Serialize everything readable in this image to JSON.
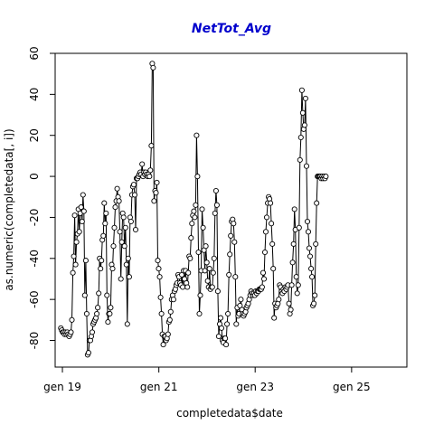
{
  "chart_data": {
    "type": "line",
    "title": "NetTot_Avg",
    "xlabel": "completedata$date",
    "ylabel": "as.numeric(completedata[, i])",
    "x_ticks": [
      "gen 19",
      "gen 21",
      "gen 23",
      "gen 25"
    ],
    "y_ticks": [
      "-80",
      "-60",
      "-40",
      "-20",
      "0",
      "20",
      "40",
      "60"
    ],
    "xlim": [
      "2018-11-07",
      "2026-02-24"
    ],
    "ylim": [
      -93,
      60
    ],
    "grid": false,
    "series": [
      {
        "style": "line-with-open-circles",
        "color": "#000000",
        "points": [
          [
            "2018-12-20",
            -74
          ],
          [
            "2018-12-27",
            -75
          ],
          [
            "2019-01-03",
            -76
          ],
          [
            "2019-01-10",
            -76
          ],
          [
            "2019-01-17",
            -77
          ],
          [
            "2019-01-24",
            -76
          ],
          [
            "2019-01-31",
            -77
          ],
          [
            "2019-02-07",
            -76
          ],
          [
            "2019-02-14",
            -77
          ],
          [
            "2019-02-21",
            -78
          ],
          [
            "2019-02-28",
            -77
          ],
          [
            "2019-03-07",
            -76
          ],
          [
            "2019-03-14",
            -70
          ],
          [
            "2019-03-21",
            -47
          ],
          [
            "2019-03-28",
            -39
          ],
          [
            "2019-04-04",
            -19
          ],
          [
            "2019-04-11",
            -43
          ],
          [
            "2019-04-18",
            -32
          ],
          [
            "2019-04-25",
            -28
          ],
          [
            "2019-05-02",
            -16
          ],
          [
            "2019-05-09",
            -27
          ],
          [
            "2019-05-16",
            -18
          ],
          [
            "2019-05-23",
            -15
          ],
          [
            "2019-05-30",
            -22
          ],
          [
            "2019-06-06",
            -9
          ],
          [
            "2019-06-13",
            -17
          ],
          [
            "2019-06-20",
            -58
          ],
          [
            "2019-06-27",
            -41
          ],
          [
            "2019-07-04",
            -67
          ],
          [
            "2019-07-11",
            -87
          ],
          [
            "2019-07-18",
            -86
          ],
          [
            "2019-07-25",
            -80
          ],
          [
            "2019-08-01",
            -80
          ],
          [
            "2019-08-08",
            -78
          ],
          [
            "2019-08-15",
            -76
          ],
          [
            "2019-08-22",
            -72
          ],
          [
            "2019-08-29",
            -71
          ],
          [
            "2019-09-05",
            -70
          ],
          [
            "2019-09-12",
            -69
          ],
          [
            "2019-09-19",
            -67
          ],
          [
            "2019-09-26",
            -64
          ],
          [
            "2019-10-03",
            -57
          ],
          [
            "2019-10-10",
            -40
          ],
          [
            "2019-10-17",
            -45
          ],
          [
            "2019-10-24",
            -41
          ],
          [
            "2019-10-31",
            -31
          ],
          [
            "2019-11-07",
            -29
          ],
          [
            "2019-11-14",
            -13
          ],
          [
            "2019-11-21",
            -23
          ],
          [
            "2019-11-28",
            -18
          ],
          [
            "2019-12-05",
            -58
          ],
          [
            "2019-12-12",
            -71
          ],
          [
            "2019-12-19",
            -67
          ],
          [
            "2019-12-26",
            -67
          ],
          [
            "2020-01-02",
            -64
          ],
          [
            "2020-01-09",
            -43
          ],
          [
            "2020-01-16",
            -45
          ],
          [
            "2020-01-23",
            -34
          ],
          [
            "2020-01-30",
            -25
          ],
          [
            "2020-02-06",
            -15
          ],
          [
            "2020-02-13",
            -12
          ],
          [
            "2020-02-20",
            -6
          ],
          [
            "2020-02-27",
            -10
          ],
          [
            "2020-03-05",
            -12
          ],
          [
            "2020-03-12",
            -27
          ],
          [
            "2020-03-19",
            -50
          ],
          [
            "2020-03-26",
            -32
          ],
          [
            "2020-04-02",
            -18
          ],
          [
            "2020-04-09",
            -20
          ],
          [
            "2020-04-16",
            -34
          ],
          [
            "2020-04-23",
            -25
          ],
          [
            "2020-04-30",
            -43
          ],
          [
            "2020-05-07",
            -72
          ],
          [
            "2020-05-14",
            -40
          ],
          [
            "2020-05-21",
            -49
          ],
          [
            "2020-05-28",
            -20
          ],
          [
            "2020-06-04",
            -22
          ],
          [
            "2020-06-11",
            -9
          ],
          [
            "2020-06-18",
            -5
          ],
          [
            "2020-06-25",
            -4
          ],
          [
            "2020-07-02",
            -9
          ],
          [
            "2020-07-09",
            -26
          ],
          [
            "2020-07-16",
            -1
          ],
          [
            "2020-07-23",
            -1
          ],
          [
            "2020-07-30",
            0
          ],
          [
            "2020-08-06",
            1
          ],
          [
            "2020-08-13",
            2
          ],
          [
            "2020-08-20",
            1
          ],
          [
            "2020-08-27",
            6
          ],
          [
            "2020-09-03",
            0
          ],
          [
            "2020-09-10",
            2
          ],
          [
            "2020-09-17",
            1
          ],
          [
            "2020-09-24",
            2
          ],
          [
            "2020-10-01",
            1
          ],
          [
            "2020-10-08",
            0
          ],
          [
            "2020-10-15",
            1
          ],
          [
            "2020-10-22",
            0
          ],
          [
            "2020-10-29",
            3
          ],
          [
            "2020-11-05",
            15
          ],
          [
            "2020-11-12",
            55
          ],
          [
            "2020-11-19",
            53
          ],
          [
            "2020-11-26",
            -12
          ],
          [
            "2020-12-03",
            -7
          ],
          [
            "2020-12-10",
            -8
          ],
          [
            "2020-12-17",
            -3
          ],
          [
            "2020-12-24",
            -41
          ],
          [
            "2020-12-31",
            -45
          ],
          [
            "2021-01-07",
            -49
          ],
          [
            "2021-01-14",
            -59
          ],
          [
            "2021-01-21",
            -67
          ],
          [
            "2021-01-28",
            -77
          ],
          [
            "2021-02-04",
            -82
          ],
          [
            "2021-02-11",
            -78
          ],
          [
            "2021-02-18",
            -78
          ],
          [
            "2021-02-25",
            -80
          ],
          [
            "2021-03-04",
            -79
          ],
          [
            "2021-03-11",
            -77
          ],
          [
            "2021-03-18",
            -71
          ],
          [
            "2021-03-25",
            -70
          ],
          [
            "2021-04-01",
            -66
          ],
          [
            "2021-04-08",
            -60
          ],
          [
            "2021-04-15",
            -58
          ],
          [
            "2021-04-22",
            -60
          ],
          [
            "2021-04-29",
            -56
          ],
          [
            "2021-05-06",
            -55
          ],
          [
            "2021-05-13",
            -53
          ],
          [
            "2021-05-20",
            -52
          ],
          [
            "2021-05-27",
            -48
          ],
          [
            "2021-06-03",
            -49
          ],
          [
            "2021-06-10",
            -52
          ],
          [
            "2021-06-17",
            -53
          ],
          [
            "2021-06-24",
            -48
          ],
          [
            "2021-07-01",
            -54
          ],
          [
            "2021-07-08",
            -46
          ],
          [
            "2021-07-15",
            -50
          ],
          [
            "2021-07-22",
            -46
          ],
          [
            "2021-07-29",
            -52
          ],
          [
            "2021-08-05",
            -54
          ],
          [
            "2021-08-12",
            -47
          ],
          [
            "2021-08-19",
            -39
          ],
          [
            "2021-08-26",
            -40
          ],
          [
            "2021-09-02",
            -30
          ],
          [
            "2021-09-09",
            -23
          ],
          [
            "2021-09-16",
            -19
          ],
          [
            "2021-09-23",
            -17
          ],
          [
            "2021-09-30",
            -20
          ],
          [
            "2021-10-07",
            -14
          ],
          [
            "2021-10-14",
            20
          ],
          [
            "2021-10-21",
            0
          ],
          [
            "2021-10-28",
            -37
          ],
          [
            "2021-11-04",
            -67
          ],
          [
            "2021-11-11",
            -58
          ],
          [
            "2021-11-18",
            -46
          ],
          [
            "2021-11-25",
            -16
          ],
          [
            "2021-12-02",
            -25
          ],
          [
            "2021-12-09",
            -36
          ],
          [
            "2021-12-16",
            -46
          ],
          [
            "2021-12-23",
            -34
          ],
          [
            "2021-12-30",
            -42
          ],
          [
            "2022-01-06",
            -51
          ],
          [
            "2022-01-13",
            -54
          ],
          [
            "2022-01-20",
            -45
          ],
          [
            "2022-01-27",
            -55
          ],
          [
            "2022-02-03",
            -54
          ],
          [
            "2022-02-10",
            -54
          ],
          [
            "2022-02-17",
            -47
          ],
          [
            "2022-02-24",
            -40
          ],
          [
            "2022-03-03",
            -18
          ],
          [
            "2022-03-10",
            -7
          ],
          [
            "2022-03-17",
            -14
          ],
          [
            "2022-03-24",
            -56
          ],
          [
            "2022-03-31",
            -78
          ],
          [
            "2022-04-07",
            -72
          ],
          [
            "2022-04-14",
            -69
          ],
          [
            "2022-04-21",
            -74
          ],
          [
            "2022-04-28",
            -80
          ],
          [
            "2022-05-05",
            -81
          ],
          [
            "2022-05-12",
            -79
          ],
          [
            "2022-05-19",
            -79
          ],
          [
            "2022-05-26",
            -82
          ],
          [
            "2022-06-02",
            -72
          ],
          [
            "2022-06-09",
            -67
          ],
          [
            "2022-06-16",
            -48
          ],
          [
            "2022-06-23",
            -38
          ],
          [
            "2022-06-30",
            -29
          ],
          [
            "2022-07-07",
            -22
          ],
          [
            "2022-07-14",
            -21
          ],
          [
            "2022-07-21",
            -23
          ],
          [
            "2022-07-28",
            -32
          ],
          [
            "2022-08-04",
            -49
          ],
          [
            "2022-08-11",
            -72
          ],
          [
            "2022-08-18",
            -64
          ],
          [
            "2022-08-25",
            -68
          ],
          [
            "2022-09-01",
            -67
          ],
          [
            "2022-09-08",
            -63
          ],
          [
            "2022-09-15",
            -60
          ],
          [
            "2022-09-22",
            -65
          ],
          [
            "2022-09-29",
            -67
          ],
          [
            "2022-10-06",
            -68
          ],
          [
            "2022-10-13",
            -67
          ],
          [
            "2022-10-20",
            -66
          ],
          [
            "2022-10-27",
            -64
          ],
          [
            "2022-11-03",
            -63
          ],
          [
            "2022-11-10",
            -62
          ],
          [
            "2022-11-17",
            -60
          ],
          [
            "2022-11-24",
            -58
          ],
          [
            "2022-12-01",
            -56
          ],
          [
            "2022-12-08",
            -57
          ],
          [
            "2022-12-15",
            -58
          ],
          [
            "2022-12-22",
            -57
          ],
          [
            "2022-12-29",
            -58
          ],
          [
            "2023-01-05",
            -56
          ],
          [
            "2023-01-12",
            -57
          ],
          [
            "2023-01-19",
            -56
          ],
          [
            "2023-01-26",
            -56
          ],
          [
            "2023-02-02",
            -55
          ],
          [
            "2023-02-09",
            -55
          ],
          [
            "2023-02-16",
            -55
          ],
          [
            "2023-02-23",
            -54
          ],
          [
            "2023-03-02",
            -47
          ],
          [
            "2023-03-09",
            -50
          ],
          [
            "2023-03-16",
            -37
          ],
          [
            "2023-03-23",
            -27
          ],
          [
            "2023-03-30",
            -20
          ],
          [
            "2023-04-06",
            -13
          ],
          [
            "2023-04-13",
            -10
          ],
          [
            "2023-04-20",
            -11
          ],
          [
            "2023-04-27",
            -13
          ],
          [
            "2023-05-04",
            -23
          ],
          [
            "2023-05-11",
            -33
          ],
          [
            "2023-05-18",
            -45
          ],
          [
            "2023-05-25",
            -69
          ],
          [
            "2023-06-01",
            -62
          ],
          [
            "2023-06-08",
            -64
          ],
          [
            "2023-06-15",
            -63
          ],
          [
            "2023-06-22",
            -62
          ],
          [
            "2023-06-29",
            -60
          ],
          [
            "2023-07-06",
            -53
          ],
          [
            "2023-07-13",
            -54
          ],
          [
            "2023-07-20",
            -56
          ],
          [
            "2023-07-27",
            -57
          ],
          [
            "2023-08-03",
            -55
          ],
          [
            "2023-08-10",
            -56
          ],
          [
            "2023-08-17",
            -54
          ],
          [
            "2023-08-24",
            -55
          ],
          [
            "2023-08-31",
            -54
          ],
          [
            "2023-09-07",
            -53
          ],
          [
            "2023-09-14",
            -62
          ],
          [
            "2023-09-21",
            -67
          ],
          [
            "2023-09-28",
            -65
          ],
          [
            "2023-10-05",
            -53
          ],
          [
            "2023-10-12",
            -42
          ],
          [
            "2023-10-19",
            -33
          ],
          [
            "2023-10-26",
            -16
          ],
          [
            "2023-11-02",
            -26
          ],
          [
            "2023-11-09",
            -49
          ],
          [
            "2023-11-16",
            -57
          ],
          [
            "2023-11-23",
            -53
          ],
          [
            "2023-11-30",
            -25
          ],
          [
            "2023-12-07",
            8
          ],
          [
            "2023-12-14",
            19
          ],
          [
            "2023-12-21",
            42
          ],
          [
            "2023-12-28",
            31
          ],
          [
            "2024-01-04",
            23
          ],
          [
            "2024-01-11",
            25
          ],
          [
            "2024-01-18",
            38
          ],
          [
            "2024-01-25",
            5
          ],
          [
            "2024-02-01",
            -22
          ],
          [
            "2024-02-08",
            -27
          ],
          [
            "2024-02-15",
            -35
          ],
          [
            "2024-02-22",
            -39
          ],
          [
            "2024-02-29",
            -45
          ],
          [
            "2024-03-07",
            -49
          ],
          [
            "2024-03-14",
            -63
          ],
          [
            "2024-03-21",
            -62
          ],
          [
            "2024-03-28",
            -58
          ],
          [
            "2024-04-04",
            -33
          ],
          [
            "2024-04-11",
            -13
          ],
          [
            "2024-04-18",
            0
          ],
          [
            "2024-04-25",
            0
          ],
          [
            "2024-05-02",
            0
          ],
          [
            "2024-05-09",
            0
          ],
          [
            "2024-05-16",
            -1
          ],
          [
            "2024-05-23",
            0
          ],
          [
            "2024-05-30",
            -1
          ],
          [
            "2024-06-06",
            0
          ],
          [
            "2024-06-13",
            -1
          ],
          [
            "2024-06-20",
            0
          ]
        ]
      }
    ]
  }
}
